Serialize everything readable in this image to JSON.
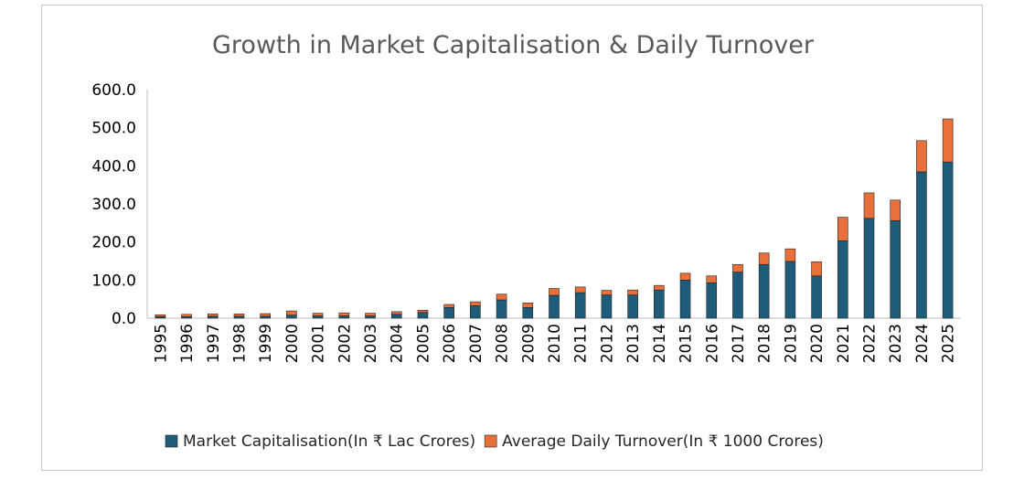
{
  "chart_data": {
    "type": "bar",
    "stacked": true,
    "title": "Growth in Market Capitalisation & Daily Turnover",
    "xlabel": "",
    "ylabel": "",
    "ylim": [
      0,
      600
    ],
    "yticks": [
      "0.0",
      "100.0",
      "200.0",
      "300.0",
      "400.0",
      "500.0",
      "600.0"
    ],
    "categories": [
      "1995",
      "1996",
      "1997",
      "1998",
      "1999",
      "2000",
      "2001",
      "2002",
      "2003",
      "2004",
      "2005",
      "2006",
      "2007",
      "2008",
      "2009",
      "2010",
      "2011",
      "2012",
      "2013",
      "2014",
      "2015",
      "2016",
      "2017",
      "2018",
      "2019",
      "2020",
      "2021",
      "2022",
      "2023",
      "2024",
      "2025"
    ],
    "series": [
      {
        "name": "Market Capitalisation(In ₹ Lac Crores)",
        "color": "#1f5c7a",
        "values": [
          4,
          4,
          5,
          5,
          5,
          8,
          6,
          6,
          6,
          10,
          15,
          28,
          33,
          48,
          28,
          60,
          67,
          61,
          61,
          74,
          100,
          93,
          121,
          141,
          149,
          111,
          203,
          262,
          256,
          384,
          410
        ]
      },
      {
        "name": "Average Daily Turnover(In ₹ 1000 Crores)",
        "color": "#e8703a",
        "values": [
          5,
          6,
          6,
          6,
          7,
          11,
          7,
          8,
          7,
          7,
          6,
          8,
          10,
          15,
          12,
          18,
          15,
          12,
          13,
          12,
          18,
          18,
          20,
          30,
          33,
          37,
          62,
          67,
          54,
          82,
          113
        ]
      }
    ],
    "legend_position": "bottom",
    "grid": false
  }
}
